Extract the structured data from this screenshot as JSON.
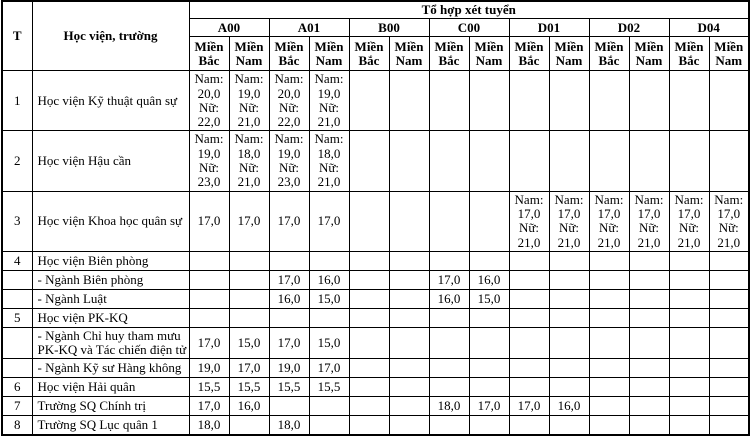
{
  "table": {
    "corner": {
      "stt": "T",
      "school": "Học viện, trường",
      "group": "Tổ hợp xét tuyển"
    },
    "blocks": [
      "A00",
      "A01",
      "B00",
      "C00",
      "D01",
      "D02",
      "D04"
    ],
    "region_north": "Miền\nBắc",
    "region_south": "Miền\nNam",
    "rows": [
      {
        "stt": "1",
        "name": "Học viện Kỹ thuật quân sự",
        "cells": [
          "Nam:\n20,0\nNữ:\n22,0",
          "Nam:\n19,0\nNữ:\n21,0",
          "Nam:\n20,0\nNữ:\n22,0",
          "Nam:\n19,0\nNữ:\n21,0",
          "",
          "",
          "",
          "",
          "",
          "",
          "",
          "",
          "",
          ""
        ]
      },
      {
        "stt": "2",
        "name": "Học viện Hậu cần",
        "cells": [
          "Nam:\n19,0\nNữ:\n23,0",
          "Nam:\n18,0\nNữ:\n21,0",
          "Nam:\n19,0\nNữ:\n23,0",
          "Nam:\n18,0\nNữ:\n21,0",
          "",
          "",
          "",
          "",
          "",
          "",
          "",
          "",
          "",
          ""
        ]
      },
      {
        "stt": "3",
        "name": "Học viện Khoa học quân sự",
        "cells": [
          "17,0",
          "17,0",
          "17,0",
          "17,0",
          "",
          "",
          "",
          "",
          "Nam:\n17,0\nNữ:\n21,0",
          "Nam:\n17,0\nNữ:\n21,0",
          "Nam:\n17,0\nNữ:\n21,0",
          "Nam:\n17,0\nNữ:\n21,0",
          "Nam:\n17,0\nNữ:\n21,0",
          "Nam:\n17,0\nNữ:\n21,0"
        ]
      },
      {
        "stt": "4",
        "name": "Học viện Biên phòng",
        "cells": [
          "",
          "",
          "",
          "",
          "",
          "",
          "",
          "",
          "",
          "",
          "",
          "",
          "",
          ""
        ]
      },
      {
        "stt": "",
        "name": "- Ngành Biên phòng",
        "cells": [
          "",
          "",
          "17,0",
          "16,0",
          "",
          "",
          "17,0",
          "16,0",
          "",
          "",
          "",
          "",
          "",
          ""
        ]
      },
      {
        "stt": "",
        "name": "- Ngành Luật",
        "cells": [
          "",
          "",
          "16,0",
          "15,0",
          "",
          "",
          "16,0",
          "15,0",
          "",
          "",
          "",
          "",
          "",
          ""
        ]
      },
      {
        "stt": "5",
        "name": "Học viện PK-KQ",
        "cells": [
          "",
          "",
          "",
          "",
          "",
          "",
          "",
          "",
          "",
          "",
          "",
          "",
          "",
          ""
        ]
      },
      {
        "stt": "",
        "name": "- Ngành Chỉ huy tham mưu PK-KQ và Tác chiến điện tử",
        "cells": [
          "17,0",
          "15,0",
          "17,0",
          "15,0",
          "",
          "",
          "",
          "",
          "",
          "",
          "",
          "",
          "",
          ""
        ]
      },
      {
        "stt": "",
        "name": "- Ngành Kỹ sư Hàng không",
        "cells": [
          "19,0",
          "17,0",
          "19,0",
          "17,0",
          "",
          "",
          "",
          "",
          "",
          "",
          "",
          "",
          "",
          ""
        ]
      },
      {
        "stt": "6",
        "name": "Học viện Hải quân",
        "cells": [
          "15,5",
          "15,5",
          "15,5",
          "15,5",
          "",
          "",
          "",
          "",
          "",
          "",
          "",
          "",
          "",
          ""
        ]
      },
      {
        "stt": "7",
        "name": "Trường SQ Chính trị",
        "cells": [
          "17,0",
          "16,0",
          "",
          "",
          "",
          "",
          "18,0",
          "17,0",
          "17,0",
          "16,0",
          "",
          "",
          "",
          ""
        ]
      },
      {
        "stt": "8",
        "name": "Trường SQ Lục quân 1",
        "cells": [
          "18,0",
          "",
          "18,0",
          "",
          "",
          "",
          "",
          "",
          "",
          "",
          "",
          "",
          "",
          ""
        ]
      }
    ]
  }
}
